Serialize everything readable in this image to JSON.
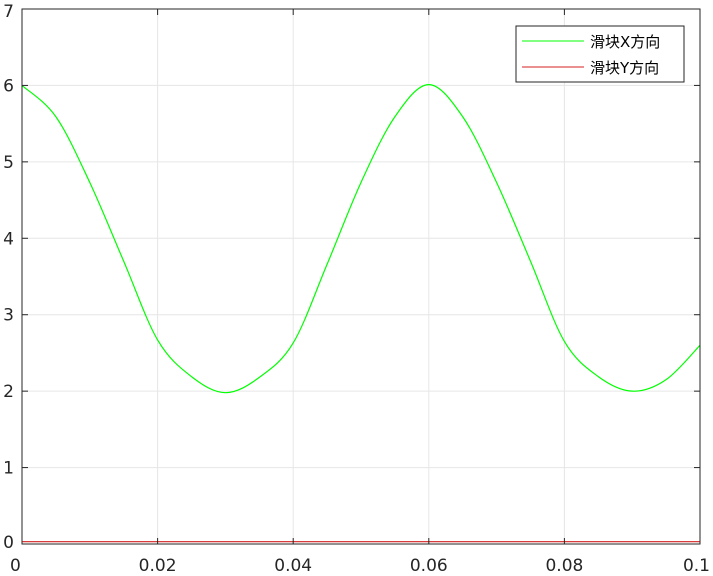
{
  "chart_data": {
    "type": "line",
    "title": "",
    "xlabel": "",
    "ylabel": "",
    "xlim": [
      0,
      0.1
    ],
    "ylim": [
      0,
      7
    ],
    "xticks": [
      0,
      0.02,
      0.04,
      0.06,
      0.08,
      0.1
    ],
    "xtick_labels": [
      "0",
      "0.02",
      "0.04",
      "0.06",
      "0.08",
      "0.1"
    ],
    "yticks": [
      0,
      1,
      2,
      3,
      4,
      5,
      6,
      7
    ],
    "ytick_labels": [
      "0",
      "1",
      "2",
      "3",
      "4",
      "5",
      "6",
      "7"
    ],
    "grid": true,
    "legend_position": "top-right",
    "x": [
      0,
      0.005,
      0.01,
      0.015,
      0.02,
      0.025,
      0.03,
      0.035,
      0.04,
      0.045,
      0.05,
      0.055,
      0.06,
      0.065,
      0.07,
      0.075,
      0.08,
      0.085,
      0.09,
      0.095,
      0.1
    ],
    "series": [
      {
        "name": "滑块X方向",
        "color": "#00ff00",
        "values": [
          6.0,
          5.59,
          4.73,
          3.7,
          2.67,
          2.19,
          1.98,
          2.18,
          2.63,
          3.66,
          4.73,
          5.59,
          6.01,
          5.59,
          4.73,
          3.7,
          2.65,
          2.19,
          2.0,
          2.15,
          2.6
        ]
      },
      {
        "name": "滑块Y方向",
        "color": "#d42020",
        "values": [
          0.03,
          0.03,
          0.03,
          0.03,
          0.03,
          0.03,
          0.03,
          0.03,
          0.03,
          0.03,
          0.03,
          0.03,
          0.03,
          0.03,
          0.03,
          0.03,
          0.03,
          0.03,
          0.03,
          0.03,
          0.03
        ]
      }
    ]
  }
}
